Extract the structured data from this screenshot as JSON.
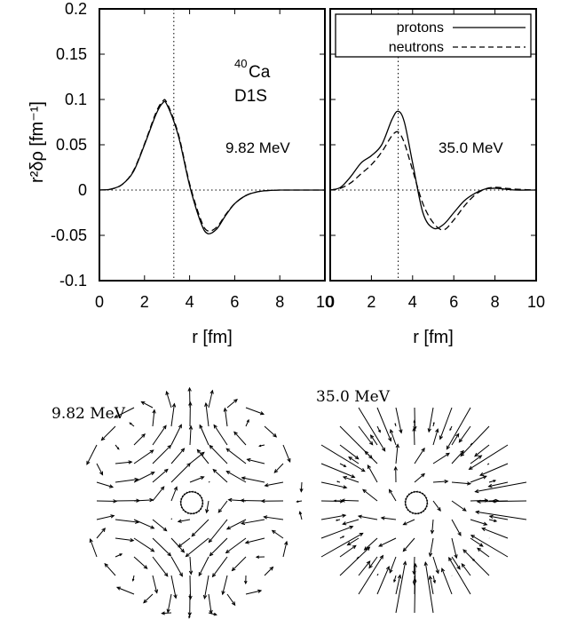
{
  "chart_data": [
    {
      "type": "line",
      "panel": "left",
      "xlabel": "r [fm]",
      "ylabel": "r²δρ [fm⁻¹]",
      "xlim": [
        0,
        10
      ],
      "ylim": [
        -0.1,
        0.2
      ],
      "x_ticks": [
        "0",
        "2",
        "4",
        "6",
        "8",
        "10"
      ],
      "y_ticks": [
        "-0.1",
        "-0.05",
        "0",
        "0.05",
        "0.1",
        "0.15",
        "0.2"
      ],
      "annotations": {
        "nucleus_mass": "40",
        "nucleus_symbol": "Ca",
        "interaction": "D1S",
        "energy": "9.82 MeV"
      },
      "vertical_marker_x": 3.3,
      "grid": false,
      "x": [
        0,
        0.5,
        1.0,
        1.5,
        2.0,
        2.5,
        2.8,
        3.0,
        3.5,
        4.0,
        4.5,
        4.8,
        5.2,
        5.6,
        6.0,
        6.5,
        7.0,
        7.5,
        8.0,
        9.0,
        10.0
      ],
      "series": [
        {
          "name": "protons",
          "style": "solid",
          "values": [
            0,
            0.001,
            0.006,
            0.02,
            0.05,
            0.083,
            0.096,
            0.094,
            0.06,
            0.005,
            -0.036,
            -0.048,
            -0.043,
            -0.028,
            -0.015,
            -0.006,
            -0.002,
            -0.0005,
            0,
            0,
            0
          ]
        },
        {
          "name": "neutrons",
          "style": "dashed",
          "values": [
            0,
            0.001,
            0.006,
            0.021,
            0.051,
            0.085,
            0.098,
            0.096,
            0.062,
            0.007,
            -0.033,
            -0.045,
            -0.041,
            -0.027,
            -0.015,
            -0.006,
            -0.002,
            -0.0005,
            0,
            0,
            0
          ]
        }
      ]
    },
    {
      "type": "line",
      "panel": "right",
      "xlabel": "r [fm]",
      "xlim": [
        0,
        10
      ],
      "ylim": [
        -0.1,
        0.2
      ],
      "x_ticks": [
        "0",
        "2",
        "4",
        "6",
        "8",
        "10"
      ],
      "annotations": {
        "energy": "35.0 MeV"
      },
      "vertical_marker_x": 3.3,
      "legend_position": "top-right",
      "legend": [
        "protons",
        "neutrons"
      ],
      "x": [
        0,
        0.5,
        1.0,
        1.5,
        2.0,
        2.5,
        3.0,
        3.3,
        3.6,
        4.0,
        4.5,
        5.0,
        5.5,
        6.0,
        6.5,
        7.0,
        7.5,
        8.0,
        8.5,
        9.0,
        10.0
      ],
      "series": [
        {
          "name": "protons",
          "style": "solid",
          "values": [
            0,
            0.003,
            0.015,
            0.03,
            0.038,
            0.05,
            0.078,
            0.087,
            0.075,
            0.03,
            -0.025,
            -0.042,
            -0.038,
            -0.025,
            -0.012,
            -0.004,
            0.001,
            0.002,
            0.001,
            0,
            0
          ]
        },
        {
          "name": "neutrons",
          "style": "dashed",
          "values": [
            0,
            0.002,
            0.008,
            0.018,
            0.028,
            0.042,
            0.06,
            0.064,
            0.052,
            0.022,
            -0.015,
            -0.036,
            -0.044,
            -0.033,
            -0.018,
            -0.006,
            0.001,
            0.003,
            0.002,
            0.001,
            0
          ]
        }
      ]
    }
  ],
  "flow_fields": [
    {
      "label": "9.82 MeV",
      "pattern": "quadrupole-like vortex flow"
    },
    {
      "label": "35.0 MeV",
      "pattern": "radial compression flow"
    }
  ]
}
